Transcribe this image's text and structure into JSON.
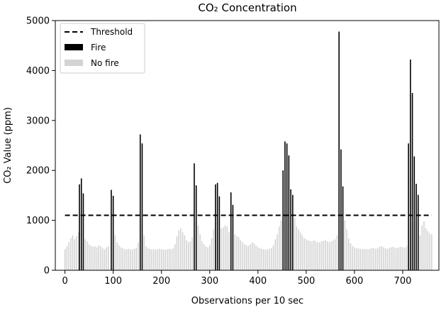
{
  "chart_data": {
    "type": "bar",
    "title": "CO₂ Concentration",
    "xlabel": "Observations per 10 sec",
    "ylabel": "CO₂ Value (ppm)",
    "xlim": [
      -20,
      775
    ],
    "ylim": [
      0,
      5000
    ],
    "x_ticks": [
      0,
      100,
      200,
      300,
      400,
      500,
      600,
      700
    ],
    "y_ticks": [
      0,
      1000,
      2000,
      3000,
      4000,
      5000
    ],
    "threshold": {
      "name": "Threshold",
      "value": 1100,
      "x_range": [
        0,
        760
      ],
      "color": "#000000"
    },
    "legend": {
      "placement": "top-left",
      "entries": [
        "Threshold",
        "Fire",
        "No fire"
      ]
    },
    "series": [
      {
        "name": "Fire",
        "color": "#000000",
        "x": [
          30,
          34,
          38,
          96,
          100,
          156,
          160,
          268,
          272,
          312,
          316,
          320,
          344,
          348,
          452,
          456,
          460,
          464,
          468,
          472,
          568,
          572,
          576,
          712,
          716,
          720,
          724,
          728,
          732
        ],
        "values": [
          1720,
          1840,
          1540,
          1610,
          1490,
          2720,
          2540,
          2140,
          1700,
          1720,
          1750,
          1480,
          1560,
          1310,
          2000,
          2580,
          2540,
          2300,
          1620,
          1510,
          4780,
          2420,
          1680,
          2540,
          4220,
          3550,
          2280,
          1730,
          1510
        ]
      },
      {
        "name": "No fire",
        "color": "#d3d3d3",
        "x": [
          0,
          4,
          8,
          12,
          16,
          20,
          24,
          28,
          42,
          46,
          50,
          54,
          58,
          62,
          66,
          70,
          74,
          78,
          82,
          86,
          90,
          104,
          108,
          112,
          116,
          120,
          124,
          128,
          132,
          136,
          140,
          144,
          148,
          152,
          164,
          168,
          172,
          176,
          180,
          184,
          188,
          192,
          196,
          200,
          204,
          208,
          212,
          216,
          220,
          224,
          228,
          232,
          236,
          240,
          244,
          248,
          252,
          256,
          260,
          264,
          276,
          280,
          284,
          288,
          292,
          296,
          300,
          304,
          308,
          324,
          328,
          332,
          336,
          340,
          352,
          356,
          360,
          364,
          368,
          372,
          376,
          380,
          384,
          388,
          392,
          396,
          400,
          404,
          408,
          412,
          416,
          420,
          424,
          428,
          432,
          436,
          440,
          444,
          448,
          476,
          480,
          484,
          488,
          492,
          496,
          500,
          504,
          508,
          512,
          516,
          520,
          524,
          528,
          532,
          536,
          540,
          544,
          548,
          552,
          556,
          560,
          564,
          580,
          584,
          588,
          592,
          596,
          600,
          604,
          608,
          612,
          616,
          620,
          624,
          628,
          632,
          636,
          640,
          644,
          648,
          652,
          656,
          660,
          664,
          668,
          672,
          676,
          680,
          684,
          688,
          692,
          696,
          700,
          704,
          708,
          736,
          740,
          744,
          748,
          752,
          756,
          760
        ],
        "values": [
          420,
          480,
          560,
          640,
          700,
          620,
          680,
          760,
          620,
          580,
          520,
          490,
          470,
          480,
          460,
          500,
          480,
          440,
          420,
          460,
          480,
          700,
          560,
          500,
          460,
          440,
          420,
          420,
          430,
          420,
          410,
          430,
          450,
          560,
          700,
          480,
          440,
          430,
          420,
          420,
          410,
          420,
          430,
          420,
          420,
          410,
          420,
          430,
          420,
          440,
          520,
          680,
          800,
          840,
          760,
          700,
          600,
          560,
          580,
          660,
          900,
          720,
          580,
          520,
          480,
          460,
          500,
          640,
          820,
          840,
          860,
          900,
          880,
          760,
          720,
          680,
          660,
          600,
          560,
          520,
          500,
          490,
          520,
          560,
          540,
          500,
          460,
          440,
          430,
          420,
          410,
          420,
          430,
          440,
          500,
          620,
          720,
          880,
          1000,
          1050,
          880,
          820,
          760,
          700,
          640,
          620,
          600,
          590,
          580,
          600,
          580,
          560,
          560,
          580,
          590,
          600,
          580,
          560,
          580,
          600,
          620,
          700,
          1000,
          820,
          640,
          540,
          480,
          460,
          440,
          440,
          430,
          420,
          430,
          420,
          420,
          430,
          440,
          450,
          430,
          440,
          470,
          480,
          460,
          440,
          430,
          450,
          460,
          470,
          450,
          440,
          460,
          470,
          460,
          450,
          480,
          700,
          900,
          980,
          840,
          780,
          740,
          720
        ]
      }
    ]
  }
}
